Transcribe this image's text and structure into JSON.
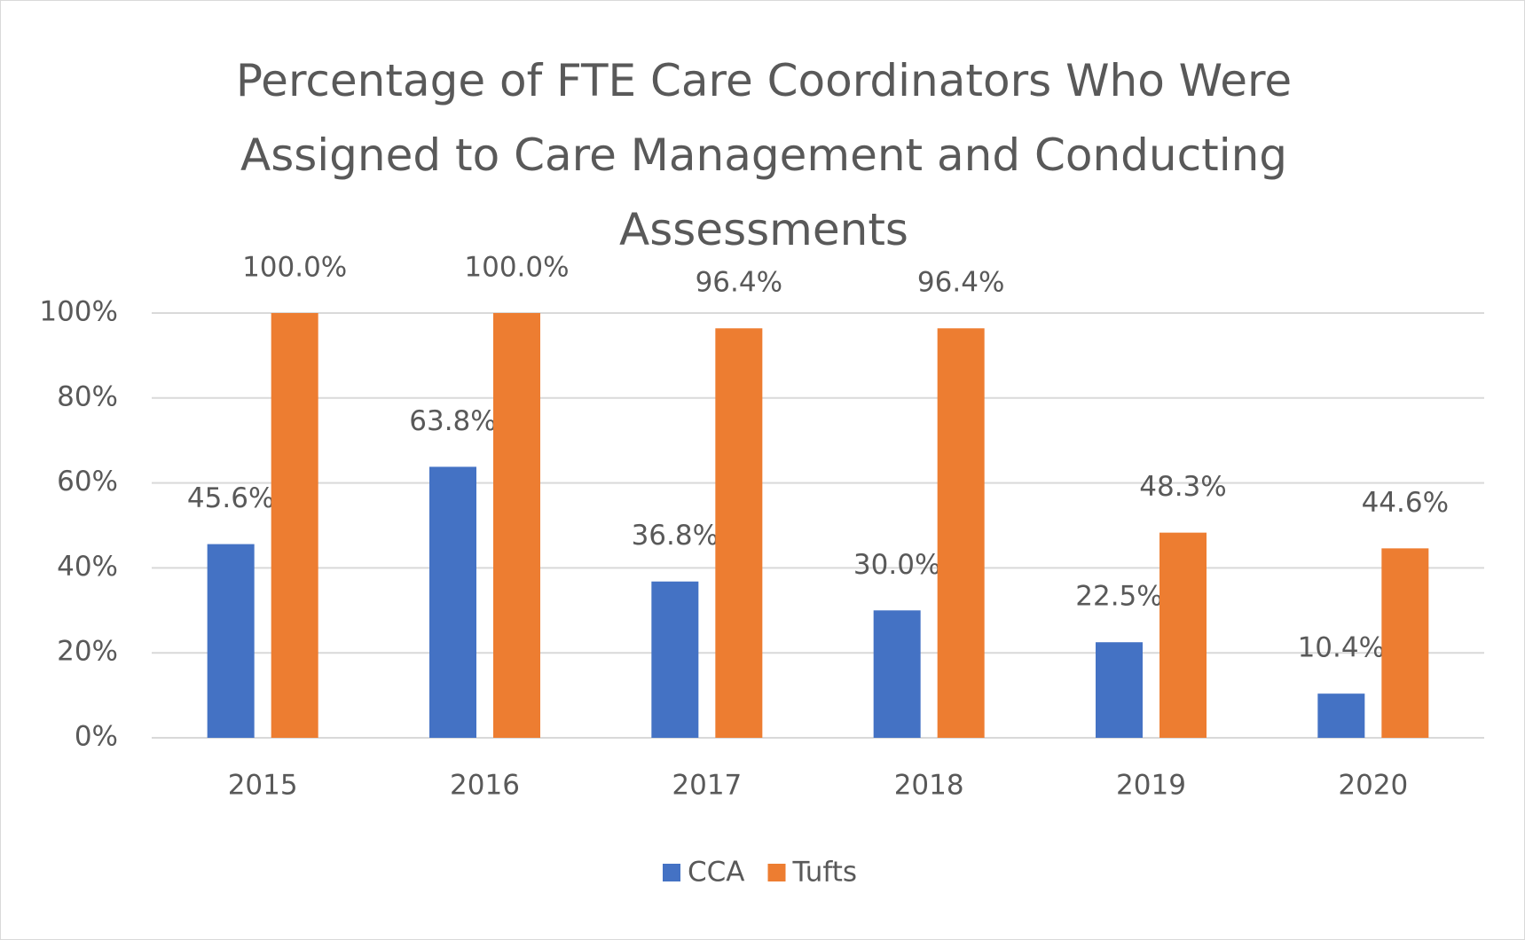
{
  "chart_data": {
    "type": "bar",
    "title": "Percentage of FTE Care Coordinators Who Were Assigned to Care Management and Conducting Assessments",
    "categories": [
      "2015",
      "2016",
      "2017",
      "2018",
      "2019",
      "2020"
    ],
    "series": [
      {
        "name": "CCA",
        "color": "#4472c4",
        "values": [
          45.6,
          63.8,
          36.8,
          30.0,
          22.5,
          10.4
        ],
        "value_labels": [
          "45.6%",
          "63.8%",
          "36.8%",
          "30.0%",
          "22.5%",
          "10.4%"
        ]
      },
      {
        "name": "Tufts",
        "color": "#ed7d31",
        "values": [
          100.0,
          100.0,
          96.4,
          96.4,
          48.3,
          44.6
        ],
        "value_labels": [
          "100.0%",
          "100.0%",
          "96.4%",
          "96.4%",
          "48.3%",
          "44.6%"
        ]
      }
    ],
    "ylim": [
      0,
      100
    ],
    "yticks": [
      {
        "value": 0,
        "label": "0%"
      },
      {
        "value": 20,
        "label": "20%"
      },
      {
        "value": 40,
        "label": "40%"
      },
      {
        "value": 60,
        "label": "60%"
      },
      {
        "value": 80,
        "label": "80%"
      },
      {
        "value": 100,
        "label": "100%"
      }
    ],
    "grid": true,
    "legend": "bottom"
  }
}
